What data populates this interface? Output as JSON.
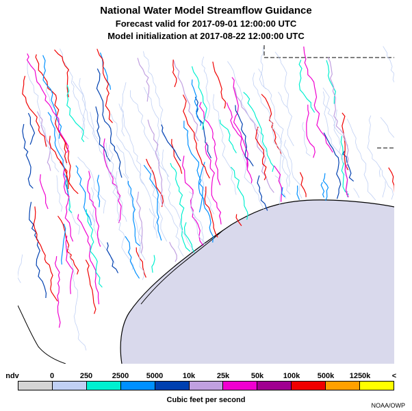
{
  "title": {
    "line1": "National Water Model Streamflow Guidance",
    "line2": "Forecast valid for 2017-09-01 12:00:00 UTC",
    "line3": "Model initialization at 2017-08-22 12:00:00 UTC"
  },
  "legend": {
    "ticks": [
      "ndv",
      "0",
      "250",
      "2500",
      "5000",
      "10k",
      "25k",
      "50k",
      "100k",
      "500k",
      "1250k",
      "<"
    ],
    "colors": [
      "#d4d4d4",
      "#c0d0f4",
      "#00f0d0",
      "#0090ff",
      "#0040b0",
      "#c0a0e0",
      "#f000d0",
      "#a00090",
      "#f00000",
      "#ffa000",
      "#ffff00"
    ],
    "units": "Cubic feet per second"
  },
  "map": {
    "water_color": "#d9d9ec",
    "land_color": "#ffffff",
    "boundary_color": "#000000"
  },
  "credit": "NOAA/OWP"
}
